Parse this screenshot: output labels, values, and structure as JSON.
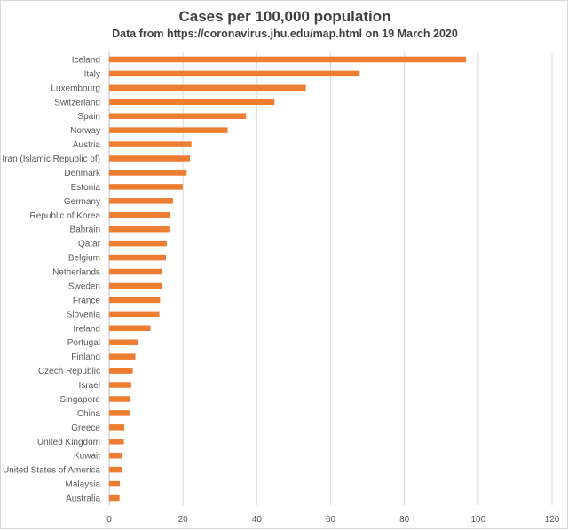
{
  "chart_data": {
    "type": "bar",
    "orientation": "horizontal",
    "title": "Cases per 100,000  population",
    "subtitle": "Data from https://coronavirus.jhu.edu/map.html  on 19 March 2020",
    "categories": [
      "Iceland",
      "Italy",
      "Luxembourg",
      "Switzerland",
      "Spain",
      "Norway",
      "Austria",
      "Iran (Islamic Republic of)",
      "Denmark",
      "Estonia",
      "Germany",
      "Republic of Korea",
      "Bahrain",
      "Qatar",
      "Belgium",
      "Netherlands",
      "Sweden",
      "France",
      "Slovenia",
      "Ireland",
      "Portugal",
      "Finland",
      "Czech Republic",
      "Israel",
      "Singapore",
      "China",
      "Greece",
      "United Kingdom",
      "Kuwait",
      "United States of America",
      "Malaysia",
      "Australia"
    ],
    "values": [
      96.7,
      67.9,
      53.3,
      44.8,
      37.1,
      32.1,
      22.3,
      21.9,
      21.0,
      19.9,
      17.3,
      16.5,
      16.3,
      15.6,
      15.4,
      14.4,
      14.2,
      13.8,
      13.6,
      11.2,
      7.7,
      7.1,
      6.4,
      6.0,
      5.8,
      5.6,
      4.1,
      4.0,
      3.5,
      3.5,
      2.9,
      2.8
    ],
    "xlim": [
      0,
      120
    ],
    "xticks": [
      0,
      20,
      40,
      60,
      80,
      100,
      120
    ],
    "grid": true,
    "bar_color": "#ED7D31",
    "gridline_color": "#d9d9d9"
  }
}
